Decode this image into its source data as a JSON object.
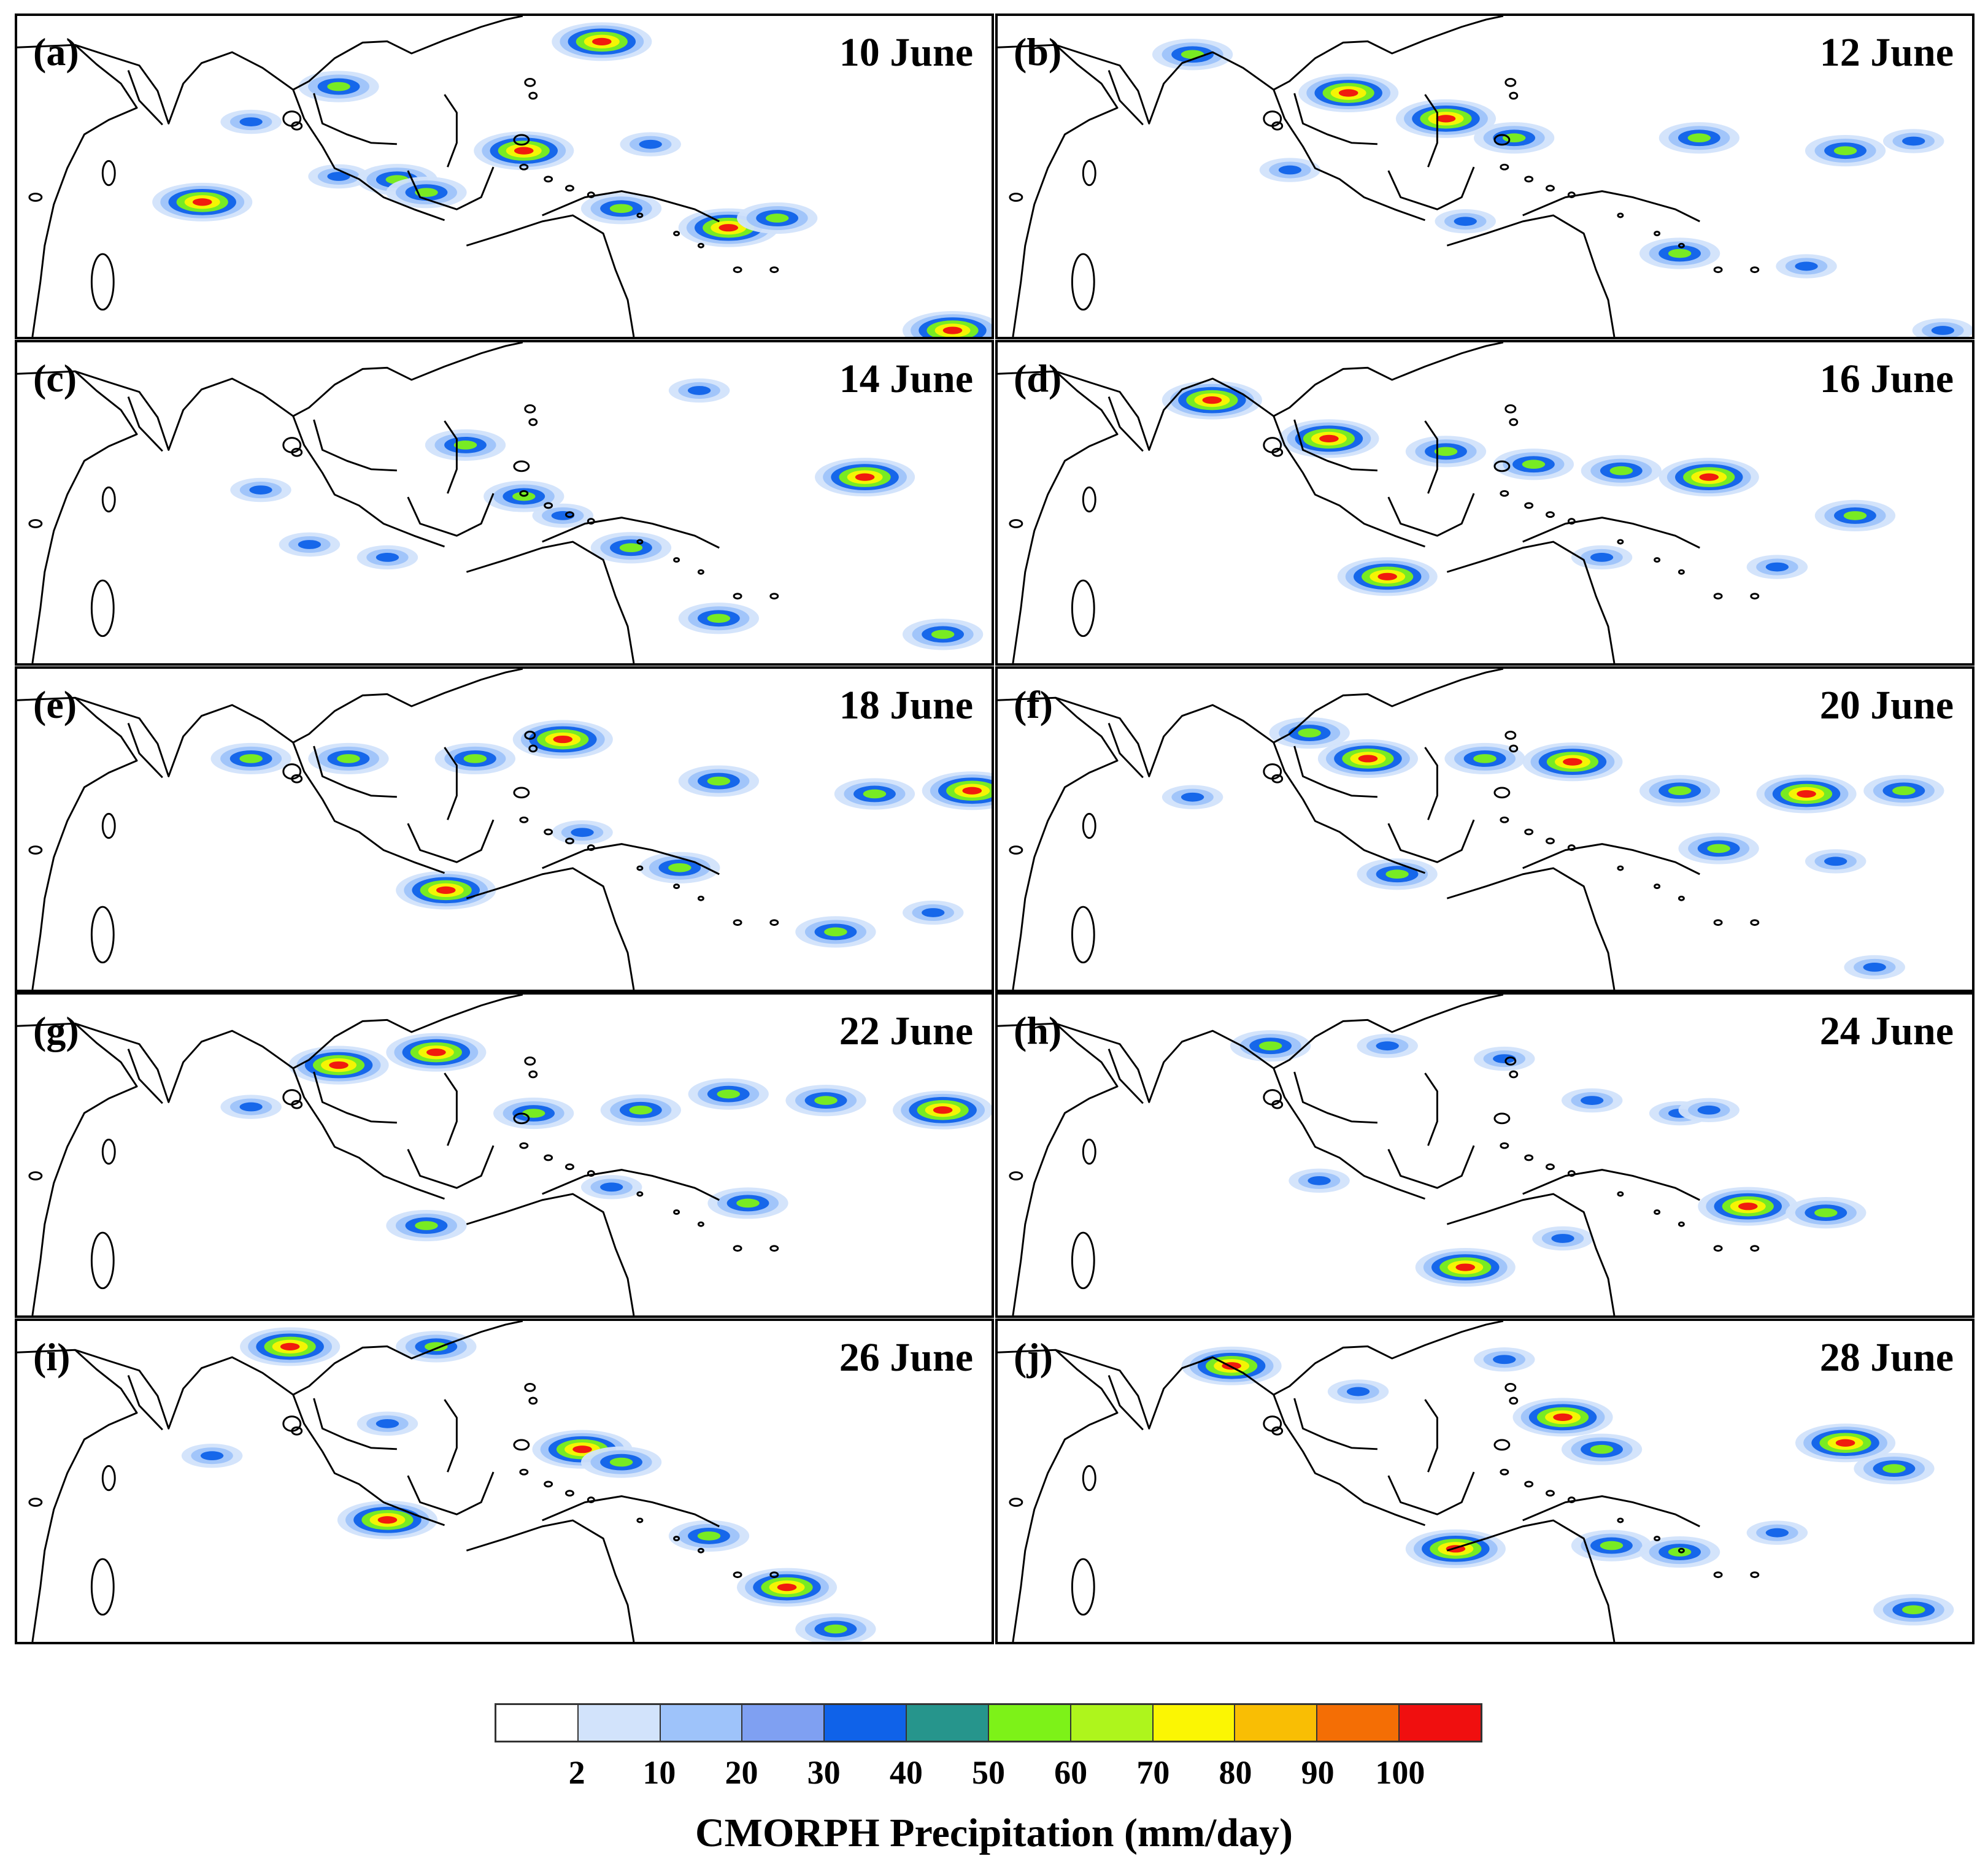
{
  "panels": [
    {
      "letter": "(a)",
      "date": "10 June",
      "blobs": [
        [
          0.33,
          0.5,
          1
        ],
        [
          0.39,
          0.51,
          2
        ],
        [
          0.42,
          0.55,
          2
        ],
        [
          0.52,
          0.42,
          3
        ],
        [
          0.62,
          0.6,
          2
        ],
        [
          0.73,
          0.66,
          3
        ],
        [
          0.78,
          0.63,
          2
        ],
        [
          0.6,
          0.08,
          3
        ],
        [
          0.19,
          0.58,
          3
        ],
        [
          0.33,
          0.22,
          2
        ],
        [
          0.24,
          0.33,
          1
        ],
        [
          0.96,
          0.98,
          3
        ],
        [
          0.65,
          0.4,
          1
        ]
      ]
    },
    {
      "letter": "(b)",
      "date": "12 June",
      "blobs": [
        [
          0.2,
          0.12,
          2
        ],
        [
          0.36,
          0.24,
          3
        ],
        [
          0.46,
          0.32,
          3
        ],
        [
          0.53,
          0.38,
          2
        ],
        [
          0.48,
          0.64,
          1
        ],
        [
          0.72,
          0.38,
          2
        ],
        [
          0.87,
          0.42,
          2
        ],
        [
          0.94,
          0.39,
          1
        ],
        [
          0.7,
          0.74,
          2
        ],
        [
          0.83,
          0.78,
          1
        ],
        [
          0.97,
          0.98,
          1
        ],
        [
          0.3,
          0.48,
          1
        ]
      ]
    },
    {
      "letter": "(c)",
      "date": "14 June",
      "blobs": [
        [
          0.46,
          0.32,
          2
        ],
        [
          0.52,
          0.48,
          2
        ],
        [
          0.56,
          0.54,
          1
        ],
        [
          0.63,
          0.64,
          2
        ],
        [
          0.3,
          0.63,
          1
        ],
        [
          0.87,
          0.42,
          3
        ],
        [
          0.95,
          0.91,
          2
        ],
        [
          0.72,
          0.86,
          2
        ],
        [
          0.38,
          0.67,
          1
        ],
        [
          0.7,
          0.15,
          1
        ],
        [
          0.25,
          0.46,
          1
        ]
      ]
    },
    {
      "letter": "(d)",
      "date": "16 June",
      "blobs": [
        [
          0.22,
          0.18,
          3
        ],
        [
          0.34,
          0.3,
          3
        ],
        [
          0.46,
          0.34,
          2
        ],
        [
          0.55,
          0.38,
          2
        ],
        [
          0.64,
          0.4,
          2
        ],
        [
          0.73,
          0.42,
          3
        ],
        [
          0.88,
          0.54,
          2
        ],
        [
          0.4,
          0.73,
          3
        ],
        [
          0.62,
          0.67,
          1
        ],
        [
          0.8,
          0.7,
          1
        ]
      ]
    },
    {
      "letter": "(e)",
      "date": "18 June",
      "blobs": [
        [
          0.24,
          0.28,
          2
        ],
        [
          0.34,
          0.28,
          2
        ],
        [
          0.47,
          0.28,
          2
        ],
        [
          0.56,
          0.22,
          3
        ],
        [
          0.72,
          0.35,
          2
        ],
        [
          0.88,
          0.39,
          2
        ],
        [
          0.98,
          0.38,
          3
        ],
        [
          0.44,
          0.69,
          3
        ],
        [
          0.68,
          0.62,
          2
        ],
        [
          0.84,
          0.82,
          2
        ],
        [
          0.94,
          0.76,
          1
        ],
        [
          0.58,
          0.51,
          1
        ]
      ]
    },
    {
      "letter": "(f)",
      "date": "20 June",
      "blobs": [
        [
          0.32,
          0.2,
          2
        ],
        [
          0.38,
          0.28,
          3
        ],
        [
          0.5,
          0.28,
          2
        ],
        [
          0.59,
          0.29,
          3
        ],
        [
          0.7,
          0.38,
          2
        ],
        [
          0.83,
          0.39,
          3
        ],
        [
          0.93,
          0.38,
          2
        ],
        [
          0.2,
          0.4,
          1
        ],
        [
          0.41,
          0.64,
          2
        ],
        [
          0.74,
          0.56,
          2
        ],
        [
          0.86,
          0.6,
          1
        ],
        [
          0.9,
          0.93,
          1
        ]
      ]
    },
    {
      "letter": "(g)",
      "date": "22 June",
      "blobs": [
        [
          0.33,
          0.22,
          3
        ],
        [
          0.43,
          0.18,
          3
        ],
        [
          0.53,
          0.37,
          2
        ],
        [
          0.64,
          0.36,
          2
        ],
        [
          0.73,
          0.31,
          2
        ],
        [
          0.83,
          0.33,
          2
        ],
        [
          0.95,
          0.36,
          3
        ],
        [
          0.42,
          0.72,
          2
        ],
        [
          0.75,
          0.65,
          2
        ],
        [
          0.24,
          0.35,
          1
        ],
        [
          0.61,
          0.6,
          1
        ]
      ]
    },
    {
      "letter": "(h)",
      "date": "24 June",
      "blobs": [
        [
          0.28,
          0.16,
          2
        ],
        [
          0.4,
          0.16,
          1
        ],
        [
          0.52,
          0.2,
          1
        ],
        [
          0.61,
          0.33,
          1
        ],
        [
          0.7,
          0.37,
          1
        ],
        [
          0.77,
          0.66,
          3
        ],
        [
          0.85,
          0.68,
          2
        ],
        [
          0.48,
          0.85,
          3
        ],
        [
          0.58,
          0.76,
          1
        ],
        [
          0.33,
          0.58,
          1
        ],
        [
          0.73,
          0.36,
          1
        ]
      ]
    },
    {
      "letter": "(i)",
      "date": "26 June",
      "blobs": [
        [
          0.28,
          0.08,
          3
        ],
        [
          0.43,
          0.08,
          2
        ],
        [
          0.38,
          0.32,
          1
        ],
        [
          0.58,
          0.4,
          3
        ],
        [
          0.62,
          0.44,
          2
        ],
        [
          0.38,
          0.62,
          3
        ],
        [
          0.71,
          0.67,
          2
        ],
        [
          0.79,
          0.83,
          3
        ],
        [
          0.84,
          0.96,
          2
        ],
        [
          0.2,
          0.42,
          1
        ]
      ]
    },
    {
      "letter": "(j)",
      "date": "28 June",
      "blobs": [
        [
          0.24,
          0.14,
          3
        ],
        [
          0.37,
          0.22,
          1
        ],
        [
          0.52,
          0.12,
          1
        ],
        [
          0.58,
          0.3,
          3
        ],
        [
          0.62,
          0.4,
          2
        ],
        [
          0.47,
          0.71,
          3
        ],
        [
          0.63,
          0.7,
          2
        ],
        [
          0.7,
          0.72,
          2
        ],
        [
          0.87,
          0.38,
          3
        ],
        [
          0.92,
          0.46,
          2
        ],
        [
          0.94,
          0.9,
          2
        ],
        [
          0.8,
          0.66,
          1
        ]
      ]
    }
  ],
  "colorbar": {
    "colors": [
      "#ffffff",
      "#d2e3fb",
      "#9ec3fa",
      "#7fa0f2",
      "#0f62e9",
      "#26958c",
      "#7df218",
      "#aef51c",
      "#fbf603",
      "#f9be04",
      "#f46e05",
      "#f00f0f"
    ],
    "ticks": [
      "2",
      "10",
      "20",
      "30",
      "40",
      "50",
      "60",
      "70",
      "80",
      "90",
      "100"
    ],
    "title": "CMORPH Precipitation (mm/day)"
  }
}
